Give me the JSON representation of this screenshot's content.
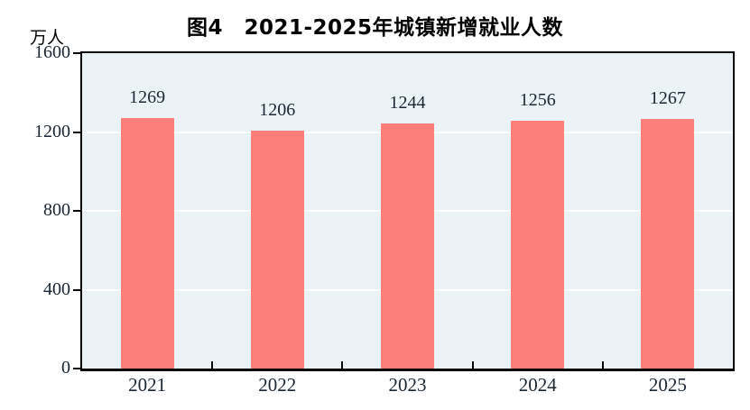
{
  "chart_data": {
    "type": "bar",
    "title": "图4　2021-2025年城镇新增就业人数",
    "unit": "万人",
    "categories": [
      "2021",
      "2022",
      "2023",
      "2024",
      "2025"
    ],
    "values": [
      1269,
      1206,
      1244,
      1256,
      1267
    ],
    "xlabel": "",
    "ylabel": "万人",
    "ylim": [
      0,
      1600
    ],
    "yticks": [
      0,
      400,
      800,
      1200,
      1600
    ],
    "grid": "horizontal",
    "legend": "none",
    "bar_labels_shown": true,
    "colors": {
      "bar": "#FC7F7C",
      "plot_background": "#ECF3F7",
      "axis": "#000000",
      "gridline": "#FFFFFF",
      "tick_text": "#1A2633",
      "title_text": "#000000"
    }
  }
}
